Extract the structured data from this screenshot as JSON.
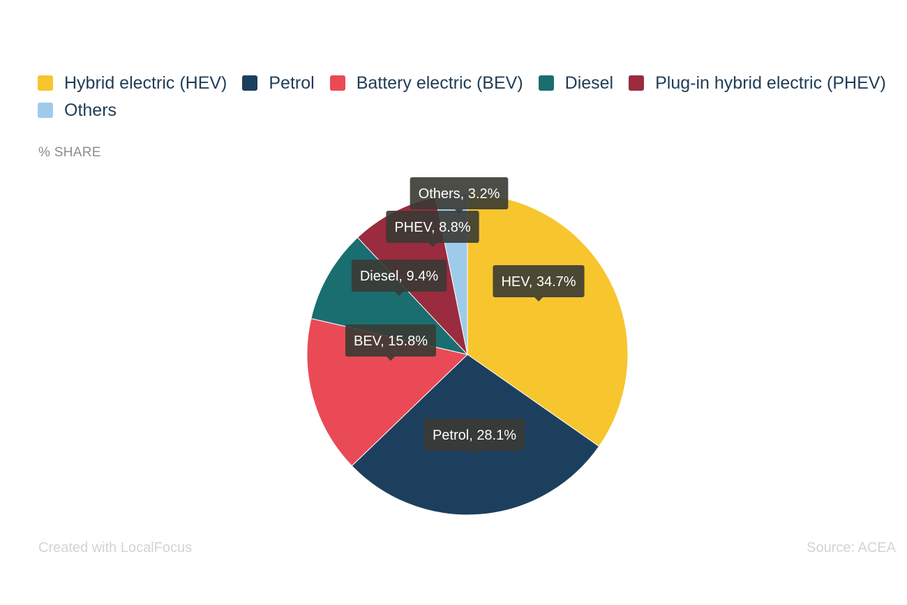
{
  "chart_data": {
    "type": "pie",
    "axis_label": "% SHARE",
    "series": [
      {
        "name": "Hybrid electric (HEV)",
        "short": "HEV",
        "value": 34.7,
        "color": "#f7c52e"
      },
      {
        "name": "Petrol",
        "short": "Petrol",
        "value": 28.1,
        "color": "#1d3f5e"
      },
      {
        "name": "Battery electric (BEV)",
        "short": "BEV",
        "value": 15.8,
        "color": "#ea4a56"
      },
      {
        "name": "Diesel",
        "short": "Diesel",
        "value": 9.4,
        "color": "#1a6e70"
      },
      {
        "name": "Plug-in hybrid electric (PHEV)",
        "short": "PHEV",
        "value": 8.8,
        "color": "#9b2b3e"
      },
      {
        "name": "Others",
        "short": "Others",
        "value": 3.2,
        "color": "#9fcbeb"
      }
    ],
    "data_labels": [
      "HEV, 34.7%",
      "Petrol, 28.1%",
      "BEV, 15.8%",
      "Diesel, 9.4%",
      "PHEV, 8.8%",
      "Others, 3.2%"
    ],
    "legend_position": "top-left"
  },
  "footer": {
    "credit": "Created with LocalFocus",
    "source": "Source:  ACEA"
  }
}
